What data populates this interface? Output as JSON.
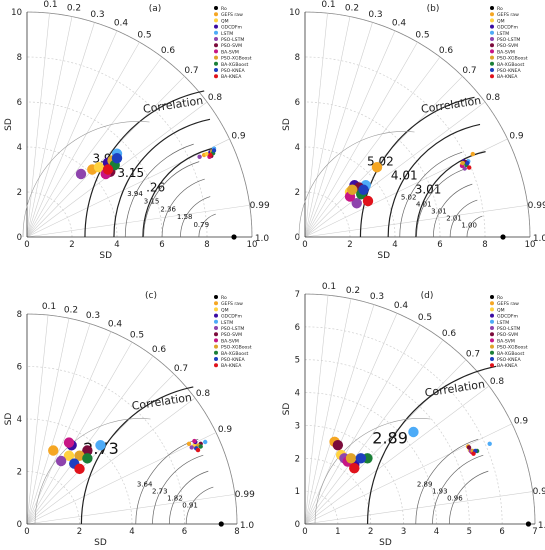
{
  "colors": {
    "Ro": "#000000",
    "GEFS raw": "#f5a623",
    "QM": "#ffd23f",
    "GDCDFm": "#3a0ca3",
    "LSTM": "#4dabf7",
    "PSO-LSTM": "#8e44ad",
    "PSO-SVM": "#7b0b3b",
    "BA-SVM": "#c71585",
    "PSO-XGBoost": "#e0a32a",
    "BA-XGBoost": "#1a7f37",
    "PSO-KNEA": "#1e3fbf",
    "BA-KNEA": "#e0121b",
    "grid": "#cfcfcf",
    "contour": "#222222"
  },
  "chart_data": [
    {
      "type": "scatter",
      "panel_label": "(a)",
      "xlabel": "SD",
      "ylabel": "SD",
      "axis_max": 10,
      "radial_ticks": [
        0,
        2,
        4,
        6,
        8,
        10
      ],
      "correlation_label": "Correlation",
      "correlation_ticks": [
        "0.1",
        "0.2",
        "0.3",
        "0.4",
        "0.5",
        "0.6",
        "0.7",
        "0.8",
        "0.9",
        "0.99",
        "1.0"
      ],
      "reference_sd": 9.2,
      "rmsd_labels": [
        "3.94",
        "3.15",
        ".26"
      ],
      "inset_rmsd_labels": [
        "3.94",
        "3.15",
        "2.36",
        "1.58",
        "0.79"
      ],
      "legend": [
        "Ro",
        "GEFS raw",
        "QM",
        "GDCDFm",
        "LSTM",
        "PSO-LSTM",
        "PSO-SVM",
        "BA-SVM",
        "PSO-XGBoost",
        "BA-XGBoost",
        "PSO-KNEA",
        "BA-KNEA"
      ],
      "points": [
        {
          "model": "GEFS raw",
          "x": 2.9,
          "y": 3.0
        },
        {
          "model": "QM",
          "x": 3.2,
          "y": 3.1
        },
        {
          "model": "GDCDFm",
          "x": 3.6,
          "y": 3.3
        },
        {
          "model": "LSTM",
          "x": 4.0,
          "y": 3.7
        },
        {
          "model": "PSO-LSTM",
          "x": 2.4,
          "y": 2.8
        },
        {
          "model": "PSO-SVM",
          "x": 3.7,
          "y": 2.9
        },
        {
          "model": "BA-SVM",
          "x": 3.5,
          "y": 2.8
        },
        {
          "model": "PSO-XGBoost",
          "x": 3.8,
          "y": 3.4
        },
        {
          "model": "BA-XGBoost",
          "x": 3.9,
          "y": 3.2
        },
        {
          "model": "PSO-KNEA",
          "x": 4.0,
          "y": 3.5
        },
        {
          "model": "BA-KNEA",
          "x": 3.6,
          "y": 3.0
        }
      ]
    },
    {
      "type": "scatter",
      "panel_label": "(b)",
      "xlabel": "SD",
      "ylabel": "SD",
      "axis_max": 10,
      "radial_ticks": [
        0,
        2,
        4,
        6,
        8,
        10
      ],
      "correlation_label": "Correlation",
      "correlation_ticks": [
        "0.1",
        "0.2",
        "0.3",
        "0.4",
        "0.5",
        "0.6",
        "0.7",
        "0.8",
        "0.9",
        "0.99",
        "1.0"
      ],
      "reference_sd": 8.8,
      "rmsd_labels": [
        "5.02",
        "4.01",
        "3.01"
      ],
      "inset_rmsd_labels": [
        "5.02",
        "4.01",
        "3.01",
        "2.01",
        "1.00"
      ],
      "legend": [
        "Ro",
        "GEFS raw",
        "QM",
        "GDCDFm",
        "LSTM",
        "PSO-LSTM",
        "PSO-SVM",
        "BA-SVM",
        "PSO-XGBoost",
        "BA-XGBoost",
        "PSO-KNEA",
        "BA-KNEA"
      ],
      "points": [
        {
          "model": "GEFS raw",
          "x": 3.2,
          "y": 3.1
        },
        {
          "model": "QM",
          "x": 2.0,
          "y": 2.0
        },
        {
          "model": "GDCDFm",
          "x": 2.2,
          "y": 2.3
        },
        {
          "model": "LSTM",
          "x": 2.7,
          "y": 2.3
        },
        {
          "model": "PSO-LSTM",
          "x": 2.3,
          "y": 1.5
        },
        {
          "model": "PSO-SVM",
          "x": 2.4,
          "y": 2.2
        },
        {
          "model": "BA-SVM",
          "x": 2.0,
          "y": 1.8
        },
        {
          "model": "PSO-XGBoost",
          "x": 2.1,
          "y": 2.1
        },
        {
          "model": "BA-XGBoost",
          "x": 2.5,
          "y": 1.9
        },
        {
          "model": "PSO-KNEA",
          "x": 2.6,
          "y": 2.1
        },
        {
          "model": "BA-KNEA",
          "x": 2.8,
          "y": 1.6
        }
      ]
    },
    {
      "type": "scatter",
      "panel_label": "(c)",
      "xlabel": "SD",
      "ylabel": "SD",
      "axis_max": 8,
      "radial_ticks": [
        0,
        2,
        4,
        6,
        8
      ],
      "correlation_label": "Correlation",
      "correlation_ticks": [
        "0.1",
        "0.2",
        "0.3",
        "0.4",
        "0.5",
        "0.6",
        "0.7",
        "0.8",
        "0.9",
        "0.99",
        "1.0"
      ],
      "reference_sd": 7.4,
      "rmsd_labels": [
        "2.73"
      ],
      "inset_rmsd_labels": [
        "3.64",
        "2.73",
        "1.82",
        "0.91"
      ],
      "legend": [
        "Ro",
        "GEFS raw",
        "QM",
        "GDCDFm",
        "LSTM",
        "PSO-LSTM",
        "PSO-SVM",
        "BA-SVM",
        "PSO-XGBoost",
        "BA-XGBoost",
        "PSO-KNEA",
        "BA-KNEA"
      ],
      "points": [
        {
          "model": "GEFS raw",
          "x": 1.0,
          "y": 2.8
        },
        {
          "model": "QM",
          "x": 1.6,
          "y": 2.6
        },
        {
          "model": "GDCDFm",
          "x": 1.7,
          "y": 3.0
        },
        {
          "model": "LSTM",
          "x": 2.8,
          "y": 3.0
        },
        {
          "model": "PSO-LSTM",
          "x": 1.3,
          "y": 2.4
        },
        {
          "model": "PSO-SVM",
          "x": 2.3,
          "y": 2.8
        },
        {
          "model": "BA-SVM",
          "x": 1.6,
          "y": 3.1
        },
        {
          "model": "PSO-XGBoost",
          "x": 2.0,
          "y": 2.6
        },
        {
          "model": "BA-XGBoost",
          "x": 2.3,
          "y": 2.5
        },
        {
          "model": "PSO-KNEA",
          "x": 1.8,
          "y": 2.3
        },
        {
          "model": "BA-KNEA",
          "x": 2.0,
          "y": 2.1
        }
      ]
    },
    {
      "type": "scatter",
      "panel_label": "(d)",
      "xlabel": "SD",
      "ylabel": "SD",
      "axis_max": 7,
      "radial_ticks": [
        0,
        1,
        2,
        3,
        4,
        5,
        6,
        7
      ],
      "correlation_label": "Correlation",
      "correlation_ticks": [
        "0.1",
        "0.2",
        "0.3",
        "0.4",
        "0.5",
        "0.6",
        "0.7",
        "0.8",
        "0.9",
        "0.99",
        "1.0"
      ],
      "reference_sd": 6.8,
      "rmsd_labels": [
        "2.89"
      ],
      "inset_rmsd_labels": [
        "2.89",
        "1.93",
        "0.96"
      ],
      "legend": [
        "Ro",
        "GEFS raw",
        "QM",
        "GDCDFm",
        "LSTM",
        "PSO-LSTM",
        "PSO-SVM",
        "BA-SVM",
        "PSO-XGBoost",
        "BA-XGBoost",
        "PSO-KNEA",
        "BA-KNEA"
      ],
      "points": [
        {
          "model": "GEFS raw",
          "x": 0.9,
          "y": 2.5
        },
        {
          "model": "QM",
          "x": 1.1,
          "y": 2.1
        },
        {
          "model": "GDCDFm",
          "x": 1.5,
          "y": 1.8
        },
        {
          "model": "LSTM",
          "x": 3.3,
          "y": 2.8
        },
        {
          "model": "PSO-LSTM",
          "x": 1.2,
          "y": 2.0
        },
        {
          "model": "PSO-SVM",
          "x": 1.0,
          "y": 2.4
        },
        {
          "model": "BA-SVM",
          "x": 1.3,
          "y": 1.9
        },
        {
          "model": "PSO-XGBoost",
          "x": 1.4,
          "y": 2.0
        },
        {
          "model": "BA-XGBoost",
          "x": 1.9,
          "y": 2.0
        },
        {
          "model": "PSO-KNEA",
          "x": 1.7,
          "y": 2.0
        },
        {
          "model": "BA-KNEA",
          "x": 1.5,
          "y": 1.7
        }
      ]
    }
  ]
}
